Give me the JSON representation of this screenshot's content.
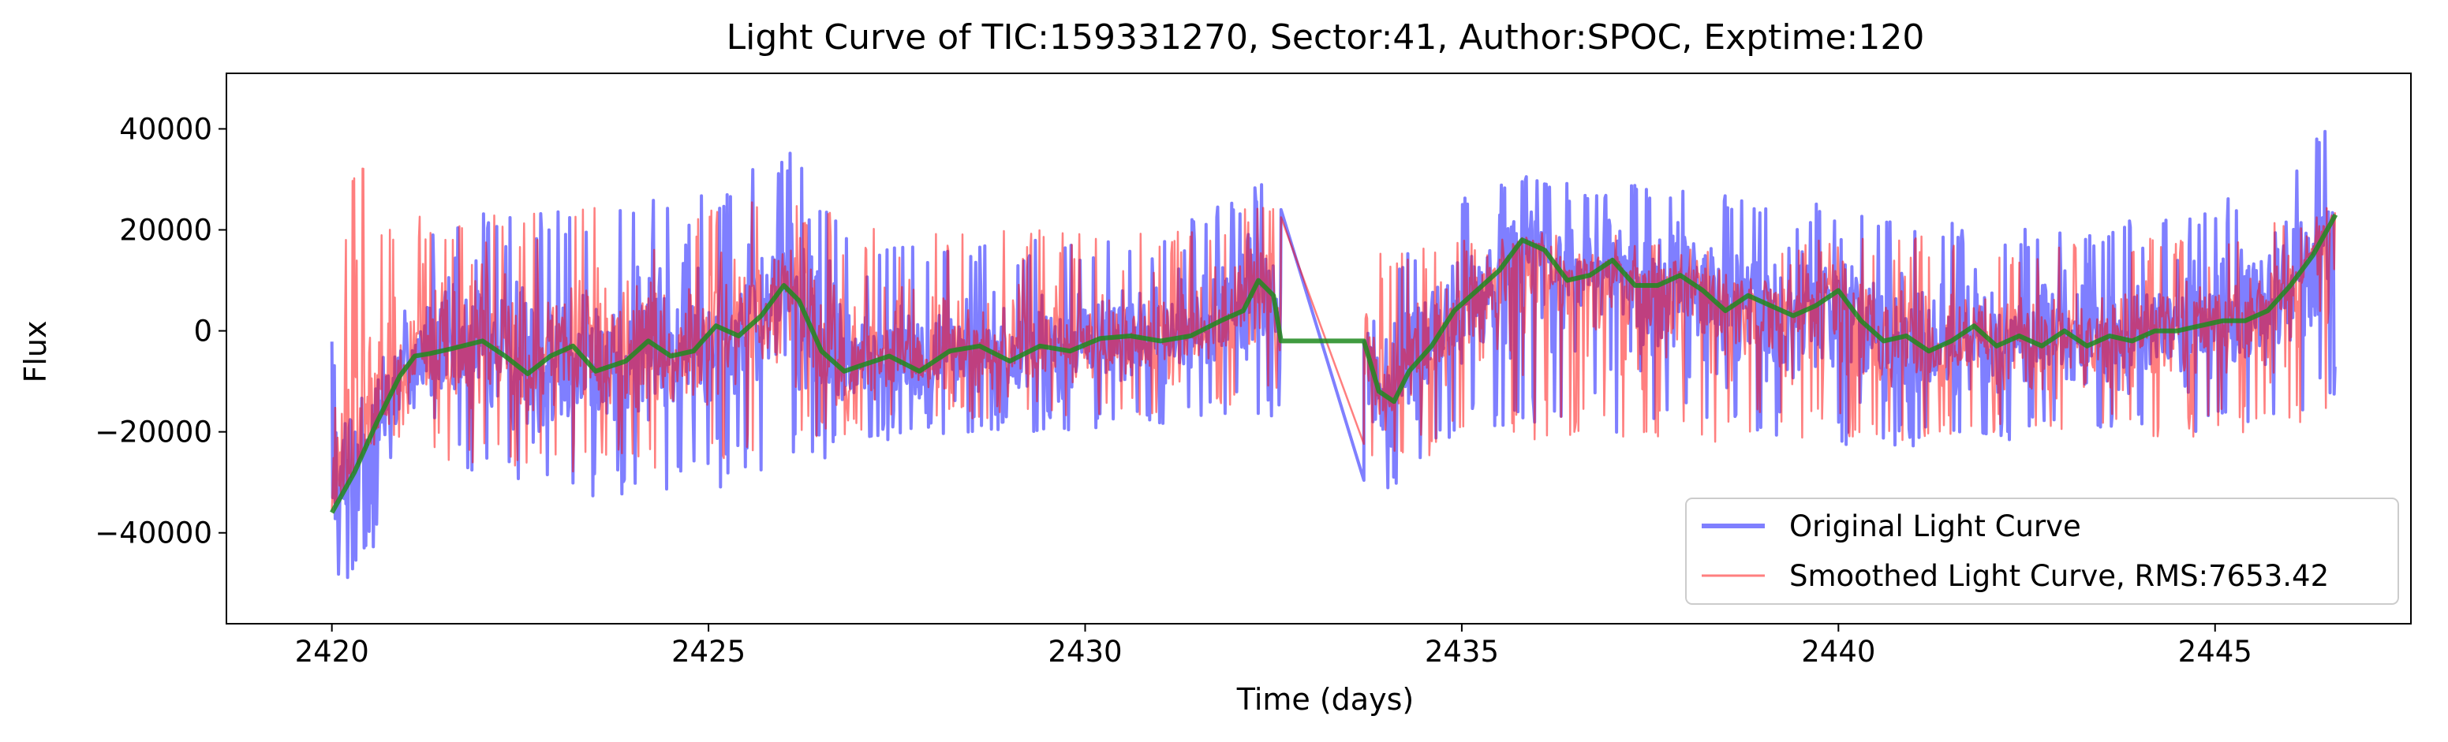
{
  "chart_data": {
    "type": "line",
    "title": "Light Curve of TIC:159331270, Sector:41, Author:SPOC, Exptime:120",
    "xlabel": "Time (days)",
    "ylabel": "Flux",
    "xlim": [
      2418.6,
      2447.6
    ],
    "ylim": [
      -58000,
      51000
    ],
    "x_ticks": [
      2420,
      2425,
      2430,
      2435,
      2440,
      2445
    ],
    "x_tick_labels": [
      "2420",
      "2425",
      "2430",
      "2435",
      "2440",
      "2445"
    ],
    "y_ticks": [
      -40000,
      -20000,
      0,
      20000,
      40000
    ],
    "y_tick_labels": [
      "−40000",
      "−20000",
      "0",
      "20000",
      "40000"
    ],
    "grid": false,
    "legend_position": "lower-right",
    "x_range": [
      2420.0,
      2446.6
    ],
    "gap": [
      2432.6,
      2433.7
    ],
    "series": [
      {
        "name": "Original Light Curve",
        "color": "#0000ff",
        "opacity": 0.5,
        "style": "noisy",
        "envelope_x": [
          2420.0,
          2420.3,
          2420.6,
          2421.0,
          2421.5,
          2422.0,
          2423.0,
          2424.0,
          2425.0,
          2426.0,
          2426.2,
          2427.0,
          2428.0,
          2429.0,
          2430.0,
          2431.0,
          2432.0,
          2432.6,
          2433.7,
          2434.0,
          2434.5,
          2435.0,
          2436.0,
          2437.0,
          2438.0,
          2439.0,
          2440.0,
          2441.0,
          2442.0,
          2443.0,
          2444.0,
          2445.0,
          2446.0,
          2446.6
        ],
        "envelope_high": [
          -2000,
          12000,
          18000,
          22000,
          24000,
          25000,
          24000,
          26000,
          30000,
          37000,
          38000,
          20000,
          19000,
          18000,
          18000,
          18000,
          28000,
          32000,
          -3000,
          12000,
          22000,
          28000,
          31000,
          30000,
          28000,
          26000,
          25000,
          22000,
          21000,
          21000,
          22000,
          26000,
          33000,
          45000
        ],
        "envelope_low": [
          -53000,
          -50000,
          -42000,
          -30000,
          -27000,
          -29000,
          -33000,
          -33000,
          -32000,
          -26000,
          -28000,
          -22000,
          -21000,
          -20000,
          -20000,
          -19000,
          -17000,
          -18000,
          -37000,
          -33000,
          -26000,
          -22000,
          -19000,
          -20000,
          -21000,
          -22000,
          -24000,
          -23000,
          -22000,
          -22000,
          -21000,
          -20000,
          -18000,
          -13000
        ]
      },
      {
        "name": "Smoothed Light Curve, RMS:7653.42",
        "color": "#ff0000",
        "opacity": 0.5,
        "style": "noisy",
        "envelope_x": [
          2420.0,
          2420.3,
          2420.6,
          2421.0,
          2422.0,
          2423.0,
          2424.0,
          2425.0,
          2426.0,
          2427.0,
          2428.0,
          2429.0,
          2430.0,
          2431.0,
          2432.0,
          2432.6,
          2433.7,
          2434.0,
          2435.0,
          2436.0,
          2437.0,
          2438.0,
          2439.0,
          2440.0,
          2441.0,
          2442.0,
          2443.0,
          2444.0,
          2445.0,
          2446.0,
          2446.6
        ],
        "envelope_high": [
          22000,
          41000,
          26000,
          25000,
          24000,
          25000,
          26000,
          26000,
          28000,
          21000,
          21000,
          20000,
          20000,
          19000,
          24000,
          30000,
          15000,
          17000,
          18000,
          20000,
          19000,
          18000,
          18000,
          19000,
          19000,
          17000,
          18000,
          18000,
          20000,
          22000,
          25000
        ],
        "envelope_low": [
          -20000,
          -25000,
          -23000,
          -24000,
          -27000,
          -28000,
          -28000,
          -27000,
          -24000,
          -20000,
          -18000,
          -17000,
          -17000,
          -17000,
          -15000,
          -14000,
          -28000,
          -26000,
          -24000,
          -22000,
          -23000,
          -22000,
          -22000,
          -22000,
          -22000,
          -21000,
          -21000,
          -21000,
          -21000,
          -19000,
          -17000
        ]
      },
      {
        "name": "",
        "color": "#1e8a1e",
        "opacity": 0.85,
        "style": "trend",
        "x": [
          2420.0,
          2420.3,
          2420.6,
          2420.9,
          2421.1,
          2421.3,
          2421.6,
          2422.0,
          2422.3,
          2422.6,
          2422.9,
          2423.2,
          2423.5,
          2423.9,
          2424.2,
          2424.5,
          2424.8,
          2425.1,
          2425.4,
          2425.7,
          2426.0,
          2426.2,
          2426.5,
          2426.8,
          2427.0,
          2427.4,
          2427.8,
          2428.2,
          2428.6,
          2429.0,
          2429.4,
          2429.8,
          2430.2,
          2430.6,
          2431.0,
          2431.4,
          2431.8,
          2432.1,
          2432.3,
          2432.5,
          2432.6,
          2433.7,
          2433.9,
          2434.1,
          2434.3,
          2434.6,
          2434.9,
          2435.2,
          2435.5,
          2435.8,
          2436.1,
          2436.4,
          2436.7,
          2437.0,
          2437.3,
          2437.6,
          2437.9,
          2438.2,
          2438.5,
          2438.8,
          2439.1,
          2439.4,
          2439.7,
          2440.0,
          2440.3,
          2440.6,
          2440.9,
          2441.2,
          2441.5,
          2441.8,
          2442.1,
          2442.4,
          2442.7,
          2443.0,
          2443.3,
          2443.6,
          2443.9,
          2444.2,
          2444.5,
          2444.8,
          2445.1,
          2445.4,
          2445.7,
          2446.0,
          2446.3,
          2446.6
        ],
        "values": [
          -36000,
          -28000,
          -18000,
          -9000,
          -5000,
          -4500,
          -3500,
          -2000,
          -5000,
          -8500,
          -5000,
          -3000,
          -8000,
          -6000,
          -2000,
          -5000,
          -4000,
          1000,
          -1000,
          3000,
          9000,
          6000,
          -4000,
          -8000,
          -7000,
          -5000,
          -8000,
          -4000,
          -3000,
          -6000,
          -3000,
          -4000,
          -1500,
          -1000,
          -2000,
          -1000,
          2000,
          4000,
          10000,
          7000,
          -2000,
          -2000,
          -12000,
          -14000,
          -8000,
          -3000,
          4000,
          8000,
          12000,
          18000,
          16000,
          10000,
          11000,
          14000,
          9000,
          9000,
          11000,
          8000,
          4000,
          7000,
          5000,
          3000,
          5000,
          8000,
          2000,
          -2000,
          -1000,
          -4000,
          -2000,
          1000,
          -3000,
          -1000,
          -3000,
          0,
          -3000,
          -1000,
          -2000,
          0,
          0,
          1000,
          2000,
          2000,
          4000,
          9000,
          15000,
          23000
        ]
      }
    ]
  }
}
